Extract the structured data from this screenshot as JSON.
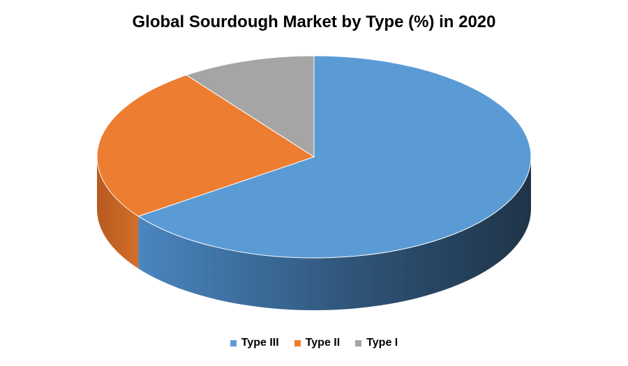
{
  "chart_data": {
    "type": "pie",
    "title": "Global Sourdough Market by Type (%) in 2020",
    "legend_position": "bottom",
    "slices": [
      {
        "name": "Type III",
        "value": 65,
        "color": "#5B9BD5",
        "side_light": "#4A86C0",
        "side_dark": "#223A52"
      },
      {
        "name": "Type II",
        "value": 25,
        "color": "#ED7D31",
        "side_light": "#CF6B29",
        "side_dark": "#B65A20"
      },
      {
        "name": "Type I",
        "value": 10,
        "color": "#A5A5A5",
        "side_light": "#8A8A8A",
        "side_dark": "#6E6E6E"
      }
    ]
  }
}
